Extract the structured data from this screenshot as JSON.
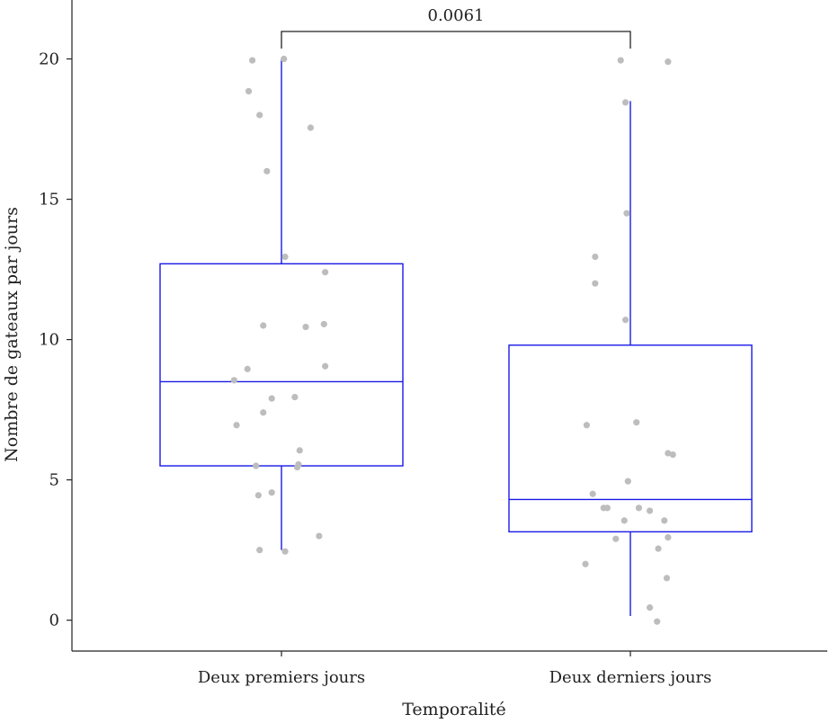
{
  "chart_data": {
    "type": "box",
    "xlabel": "Temporalité",
    "ylabel": "Nombre de gateaux par jours",
    "ylim": [
      -1.1,
      22.1
    ],
    "yticks": [
      0,
      5,
      10,
      15,
      20
    ],
    "categories": [
      "Deux premiers jours",
      "Deux derniers jours"
    ],
    "grid": false,
    "box_color": "#1a1ae6",
    "point_color": "#bdbdbd",
    "annotation": {
      "label": "0.0061",
      "between": [
        0,
        1
      ]
    },
    "boxes": [
      {
        "category": "Deux premiers jours",
        "whisker_low": 2.5,
        "q1": 5.5,
        "median": 8.5,
        "q3": 12.7,
        "whisker_high": 20.0
      },
      {
        "category": "Deux derniers jours",
        "whisker_low": 0.15,
        "q1": 3.15,
        "median": 4.3,
        "q3": 9.8,
        "whisker_high": 18.5
      }
    ],
    "points": [
      [
        {
          "x": -0.24,
          "y": 19.95
        },
        {
          "x": 0.02,
          "y": 20.0
        },
        {
          "x": -0.27,
          "y": 18.85
        },
        {
          "x": -0.18,
          "y": 18.0
        },
        {
          "x": 0.24,
          "y": 17.55
        },
        {
          "x": -0.12,
          "y": 16.0
        },
        {
          "x": 0.03,
          "y": 12.95
        },
        {
          "x": 0.36,
          "y": 12.4
        },
        {
          "x": -0.15,
          "y": 10.5
        },
        {
          "x": 0.2,
          "y": 10.45
        },
        {
          "x": 0.35,
          "y": 10.55
        },
        {
          "x": -0.28,
          "y": 8.95
        },
        {
          "x": -0.39,
          "y": 8.55
        },
        {
          "x": 0.36,
          "y": 9.05
        },
        {
          "x": -0.08,
          "y": 7.9
        },
        {
          "x": 0.11,
          "y": 7.95
        },
        {
          "x": -0.15,
          "y": 7.4
        },
        {
          "x": -0.37,
          "y": 6.95
        },
        {
          "x": 0.15,
          "y": 6.05
        },
        {
          "x": -0.21,
          "y": 5.5
        },
        {
          "x": 0.13,
          "y": 5.45
        },
        {
          "x": 0.14,
          "y": 5.55
        },
        {
          "x": -0.19,
          "y": 4.45
        },
        {
          "x": -0.08,
          "y": 4.55
        },
        {
          "x": 0.31,
          "y": 3.0
        },
        {
          "x": -0.18,
          "y": 2.5
        },
        {
          "x": 0.03,
          "y": 2.45
        }
      ],
      [
        {
          "x": -0.08,
          "y": 19.95
        },
        {
          "x": 0.31,
          "y": 19.9
        },
        {
          "x": -0.04,
          "y": 18.45
        },
        {
          "x": -0.03,
          "y": 14.5
        },
        {
          "x": -0.29,
          "y": 12.95
        },
        {
          "x": -0.29,
          "y": 12.0
        },
        {
          "x": -0.04,
          "y": 10.7
        },
        {
          "x": -0.36,
          "y": 6.95
        },
        {
          "x": 0.05,
          "y": 7.05
        },
        {
          "x": 0.31,
          "y": 5.95
        },
        {
          "x": 0.35,
          "y": 5.9
        },
        {
          "x": -0.02,
          "y": 4.95
        },
        {
          "x": -0.31,
          "y": 4.5
        },
        {
          "x": -0.22,
          "y": 4.0
        },
        {
          "x": -0.19,
          "y": 4.0
        },
        {
          "x": 0.07,
          "y": 4.0
        },
        {
          "x": 0.16,
          "y": 3.9
        },
        {
          "x": -0.05,
          "y": 3.55
        },
        {
          "x": 0.28,
          "y": 3.55
        },
        {
          "x": -0.12,
          "y": 2.9
        },
        {
          "x": 0.31,
          "y": 2.95
        },
        {
          "x": 0.23,
          "y": 2.55
        },
        {
          "x": -0.37,
          "y": 2.0
        },
        {
          "x": 0.3,
          "y": 1.5
        },
        {
          "x": 0.16,
          "y": 0.45
        },
        {
          "x": 0.22,
          "y": -0.05
        }
      ]
    ]
  }
}
